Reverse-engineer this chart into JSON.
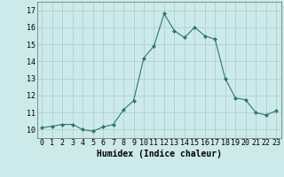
{
  "x": [
    0,
    1,
    2,
    3,
    4,
    5,
    6,
    7,
    8,
    9,
    10,
    11,
    12,
    13,
    14,
    15,
    16,
    17,
    18,
    19,
    20,
    21,
    22,
    23
  ],
  "y": [
    10.1,
    10.2,
    10.3,
    10.3,
    10.0,
    9.9,
    10.15,
    10.3,
    11.15,
    11.7,
    14.2,
    14.9,
    16.8,
    15.8,
    15.4,
    16.0,
    15.5,
    15.3,
    13.0,
    11.85,
    11.75,
    11.0,
    10.85,
    11.1
  ],
  "line_color": "#2a7a6a",
  "marker": "D",
  "marker_size": 2.0,
  "bg_color": "#cceaea",
  "grid_color": "#aacccc",
  "xlabel": "Humidex (Indice chaleur)",
  "xlabel_fontsize": 7,
  "tick_fontsize": 6,
  "ylim": [
    9.5,
    17.5
  ],
  "xlim": [
    -0.5,
    23.5
  ],
  "yticks": [
    10,
    11,
    12,
    13,
    14,
    15,
    16,
    17
  ],
  "xticks": [
    0,
    1,
    2,
    3,
    4,
    5,
    6,
    7,
    8,
    9,
    10,
    11,
    12,
    13,
    14,
    15,
    16,
    17,
    18,
    19,
    20,
    21,
    22,
    23
  ]
}
